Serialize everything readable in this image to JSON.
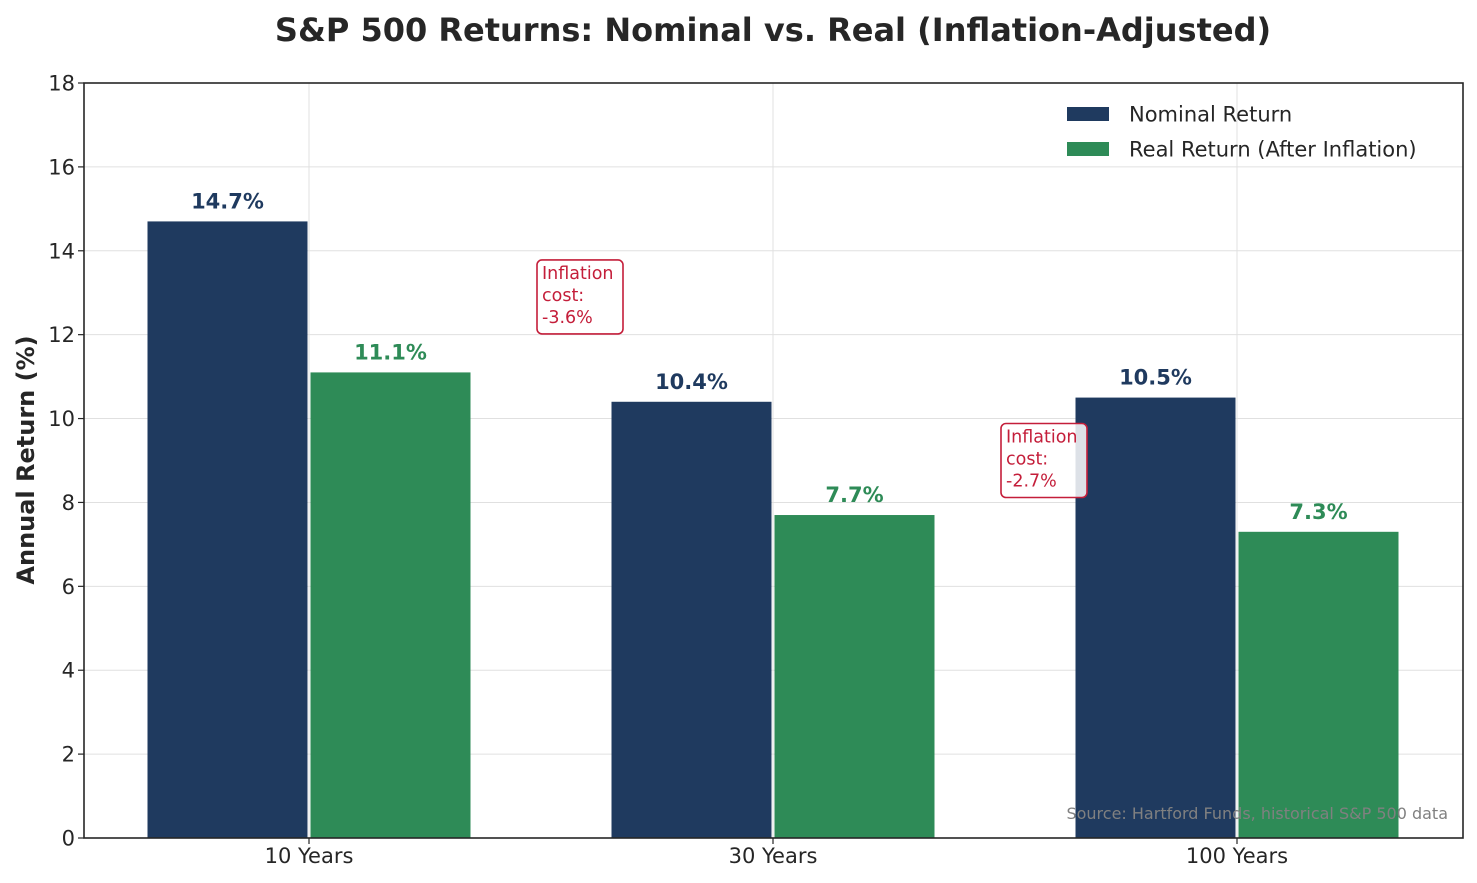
{
  "chart_data": {
    "type": "bar",
    "title": "S&P 500 Returns: Nominal vs. Real (Inflation-Adjusted)",
    "xlabel": "",
    "ylabel": "Annual Return (%)",
    "ylim": [
      0,
      18
    ],
    "yticks": [
      0,
      2,
      4,
      6,
      8,
      10,
      12,
      14,
      16,
      18
    ],
    "categories": [
      "10 Years",
      "30 Years",
      "100 Years"
    ],
    "series": [
      {
        "name": "Nominal Return",
        "color": "#1f3a5f",
        "values": [
          14.7,
          10.4,
          10.5
        ],
        "labels": [
          "14.7%",
          "10.4%",
          "10.5%"
        ]
      },
      {
        "name": "Real Return (After Inflation)",
        "color": "#2e8b57",
        "values": [
          11.1,
          7.7,
          7.3
        ],
        "labels": [
          "11.1%",
          "7.7%",
          "7.3%"
        ]
      }
    ],
    "annotations": [
      {
        "lines": [
          "Inflation",
          "cost:",
          "-3.6%"
        ],
        "x_between": [
          0,
          1
        ],
        "y": 12.9,
        "color": "#c41e3a"
      },
      {
        "lines": [
          "Inflation",
          "cost:",
          "-2.7%"
        ],
        "x_between": [
          1,
          2
        ],
        "y": 9.0,
        "color": "#c41e3a"
      }
    ],
    "grid": true,
    "legend_position": "top-right",
    "source_note": "Source: Hartford Funds, historical S&P 500 data"
  }
}
